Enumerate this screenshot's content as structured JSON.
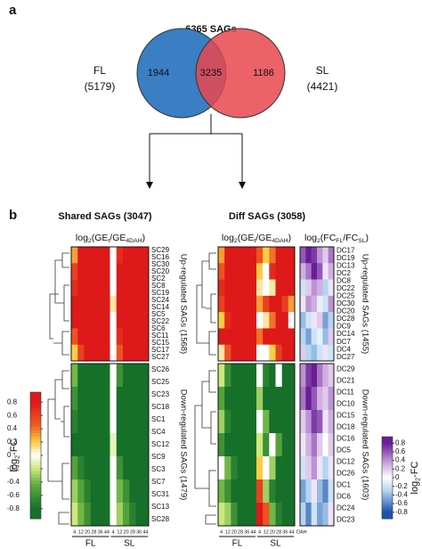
{
  "panel_a": {
    "letter": "a",
    "title": "6365 SAGs",
    "venn": {
      "left_only": 1944,
      "overlap": 3235,
      "right_only": 1186,
      "left_name": "FL",
      "left_total": "(5179)",
      "right_name": "SL",
      "right_total": "(4421)"
    }
  },
  "panel_b": {
    "letter": "b",
    "shared": {
      "title": "Shared SAGs (3047)",
      "heatmap_title": [
        "log",
        {
          "sub": "2"
        },
        "(GE",
        {
          "sub": "t"
        },
        "/GE",
        {
          "sub": "4DAH"
        },
        ")"
      ],
      "up_label": "Up-regulated SAGs (1568)",
      "down_label": "Down-regulated SAGs (1479)",
      "up_rows": [
        "SC29",
        "SC16",
        "SC30",
        "SC20",
        "SC2",
        "SC8",
        "SC19",
        "SC24",
        "SC14",
        "SC5",
        "SC22",
        "SC6",
        "SC11",
        "SC15",
        "SC17",
        "SC27"
      ],
      "down_rows": [
        "SC26",
        "SC25",
        "SC23",
        "SC18",
        "SC1",
        "SC4",
        "SC12",
        "SC9",
        "SC3",
        "SC7",
        "SC31",
        "SC13",
        "SC28"
      ],
      "up_values": [
        [
          0.3,
          0.8,
          0.9,
          0.9,
          0.8,
          0.9,
          0,
          0.7,
          0.9,
          0.9,
          0.9,
          0.8
        ],
        [
          0.6,
          0.9,
          0.9,
          0.8,
          0.9,
          0.9,
          0,
          0.8,
          0.9,
          0.8,
          0.9,
          0.9
        ],
        [
          0.7,
          0.8,
          0.9,
          0.9,
          0.9,
          0.8,
          0,
          0.9,
          0.9,
          0.9,
          0.8,
          0.9
        ],
        [
          0.8,
          0.9,
          0.8,
          0.9,
          0.9,
          0.9,
          0.1,
          0.9,
          0.8,
          0.9,
          0.9,
          0.9
        ],
        [
          0.9,
          0.9,
          0.9,
          0.8,
          0.9,
          0.9,
          0,
          0.8,
          0.9,
          0.9,
          0.9,
          0.8
        ],
        [
          0.5,
          0.8,
          0.9,
          0.9,
          0.9,
          0.9,
          0,
          0.7,
          0.9,
          0.9,
          0.9,
          0.9
        ],
        [
          0.2,
          0.6,
          0.8,
          0.9,
          0.9,
          0.9,
          0,
          0.5,
          0.8,
          0.9,
          0.9,
          0.9
        ]
      ],
      "down_values": [
        [
          -0.4,
          -0.8,
          -0.9,
          -0.9,
          -0.8,
          -0.9,
          0,
          -0.6,
          -0.9,
          -0.9,
          -0.9,
          -0.8
        ],
        [
          -0.6,
          -0.9,
          -0.9,
          -0.9,
          -0.9,
          -0.8,
          0,
          -0.8,
          -0.9,
          -0.8,
          -0.9,
          -0.9
        ],
        [
          -0.7,
          -0.9,
          -0.9,
          -0.8,
          -0.9,
          -0.9,
          0,
          -0.9,
          -0.9,
          -0.9,
          -0.8,
          -0.9
        ],
        [
          -0.8,
          -0.9,
          -0.8,
          -0.9,
          -0.9,
          -0.9,
          -0.1,
          -0.9,
          -0.8,
          -0.9,
          -0.9,
          -0.9
        ],
        [
          -0.5,
          -0.7,
          -0.9,
          -0.9,
          -0.9,
          -0.8,
          0,
          -0.6,
          -0.8,
          -0.9,
          -0.9,
          -0.9
        ],
        [
          -0.3,
          -0.5,
          -0.7,
          -0.9,
          -0.9,
          -0.9,
          0,
          -0.4,
          -0.6,
          -0.8,
          -0.9,
          -0.9
        ],
        [
          -0.2,
          -0.4,
          -0.6,
          -0.8,
          -0.9,
          -0.9,
          0,
          -0.3,
          -0.5,
          -0.7,
          -0.9,
          -0.9
        ]
      ]
    },
    "diff": {
      "title": "Diff SAGs (3058)",
      "heatmap_title": [
        "log",
        {
          "sub": "2"
        },
        "(GE",
        {
          "sub": "t"
        },
        "/GE",
        {
          "sub": "4DAH"
        },
        ")"
      ],
      "fc_title": [
        "log",
        {
          "sub": "2"
        },
        "(FC",
        {
          "sub": "FL"
        },
        "/FC",
        {
          "sub": "SL"
        },
        ")"
      ],
      "up_label": "Up-regulated SAGs (1455)",
      "down_label": "Down-regulated SAGs (1603)",
      "up_rows": [
        "DC17",
        "DC19",
        "DC13",
        "DC2",
        "DC8",
        "DC22",
        "DC25",
        "DC30",
        "DC20",
        "DC28",
        "DC9",
        "DC14",
        "DC7",
        "DC4",
        "DC27"
      ],
      "down_rows": [
        "DC29",
        "DC21",
        "DC11",
        "DC10",
        "DC15",
        "DC18",
        "DC16",
        "DC5",
        "DC12",
        "DC26",
        "DC1",
        "DC6",
        "DC24",
        "DC23"
      ],
      "up_values": [
        [
          0.3,
          0.8,
          0.9,
          0.9,
          0.9,
          0.8,
          0.5,
          0.2,
          0.4,
          0.9,
          0.9,
          0.8
        ],
        [
          0.5,
          0.9,
          0.9,
          0.8,
          0.9,
          0.9,
          0.2,
          0,
          0.7,
          0.8,
          0.9,
          0.9
        ],
        [
          0.7,
          0.9,
          0.8,
          0.9,
          0.9,
          0.9,
          0.1,
          0,
          0.1,
          0.8,
          0.9,
          0.9
        ],
        [
          0.6,
          0.8,
          0.9,
          0.9,
          0.9,
          0.9,
          0.3,
          0.6,
          0.8,
          0.9,
          0.6,
          0.3
        ],
        [
          0.2,
          0.7,
          0.9,
          0.9,
          0.8,
          0.9,
          0,
          0.1,
          0.4,
          0.9,
          0.9,
          0
        ],
        [
          0.8,
          0.9,
          0.9,
          0.9,
          0.9,
          0.8,
          0.4,
          0.8,
          0.9,
          0.9,
          0.9,
          0.9
        ],
        [
          0.1,
          0.5,
          0.9,
          0.9,
          0.9,
          0.9,
          0,
          0,
          0.2,
          0.6,
          0.9,
          0.8
        ]
      ],
      "down_values": [
        [
          -0.2,
          -0.6,
          -0.8,
          -0.9,
          -0.9,
          -0.9,
          0,
          -0.7,
          -0.9,
          0,
          -0.8,
          -0.9
        ],
        [
          -0.5,
          -0.8,
          -0.9,
          -0.9,
          -0.8,
          -0.9,
          -0.3,
          -0.8,
          -0.9,
          -0.9,
          -0.9,
          -0.8
        ],
        [
          -0.3,
          -0.7,
          -0.9,
          -0.8,
          -0.9,
          -0.9,
          0,
          -0.4,
          -0.8,
          -0.9,
          -0.9,
          -0.9
        ],
        [
          -0.6,
          -0.9,
          -0.9,
          -0.9,
          -0.9,
          -0.8,
          -0.2,
          -0.6,
          0,
          -0.5,
          -0.9,
          -0.9
        ],
        [
          0,
          -0.4,
          -0.7,
          -0.9,
          -0.9,
          -0.9,
          0.2,
          0,
          -0.3,
          -0.8,
          -0.9,
          -0.9
        ],
        [
          -0.4,
          -0.6,
          -0.8,
          -0.9,
          -0.9,
          -0.9,
          0.6,
          -0.3,
          -0.7,
          -0.9,
          -0.8,
          -0.9
        ],
        [
          -0.2,
          -0.3,
          -0.6,
          -0.8,
          -0.9,
          -0.9,
          0.8,
          0.5,
          -0.4,
          -0.7,
          -0.9,
          -0.9
        ]
      ],
      "fc_up_values": [
        [
          0.6,
          0.8,
          0.7,
          0.4,
          0.2,
          0.5
        ],
        [
          0.3,
          0.5,
          0.8,
          0.6,
          0.1,
          0.3
        ],
        [
          -0.2,
          0.2,
          0.4,
          0.3,
          -0.3,
          0.1
        ],
        [
          0.1,
          0.4,
          0.3,
          -0.1,
          -0.2,
          0.4
        ],
        [
          -0.4,
          -0.2,
          0.1,
          0.2,
          -0.5,
          -0.3
        ],
        [
          -0.3,
          -0.5,
          -0.2,
          -0.1,
          -0.4,
          0.2
        ],
        [
          0.2,
          -0.3,
          -0.4,
          -0.2,
          0.1,
          -0.2
        ]
      ],
      "fc_down_values": [
        [
          0.4,
          0.7,
          0.8,
          0.5,
          0.3,
          0.2
        ],
        [
          0.5,
          0.8,
          0.6,
          0.3,
          0.2,
          0.4
        ],
        [
          0.2,
          0.4,
          0.7,
          0.6,
          0.1,
          0.3
        ],
        [
          0.1,
          0.3,
          0.5,
          0.2,
          0,
          0.2
        ],
        [
          -0.2,
          0.2,
          0.4,
          0.1,
          -0.3,
          0.1
        ],
        [
          -0.5,
          -0.3,
          0.1,
          -0.4,
          -0.6,
          -0.2
        ],
        [
          -0.3,
          -0.6,
          -0.2,
          -0.5,
          -0.4,
          0.1
        ]
      ]
    },
    "days": [
      4,
      12,
      20,
      28,
      36,
      44
    ],
    "day_unit": "DAH",
    "groups": [
      "FL",
      "SL"
    ],
    "ge_scale": {
      "label": [
        "log",
        {
          "sub": "2"
        },
        "-FC"
      ],
      "lim": [
        -0.95,
        0.95
      ],
      "ticks": [
        0.8,
        0.6,
        0.4,
        0.2,
        0,
        -0.2,
        -0.4,
        -0.6,
        -0.8
      ]
    },
    "fc_scale": {
      "label": [
        "log",
        {
          "sub": "2"
        },
        "-FC"
      ],
      "lim": [
        -0.95,
        0.95
      ],
      "ticks": [
        0.8,
        0.6,
        0.4,
        0.2,
        0,
        -0.2,
        -0.4,
        -0.6,
        -0.8
      ]
    }
  }
}
